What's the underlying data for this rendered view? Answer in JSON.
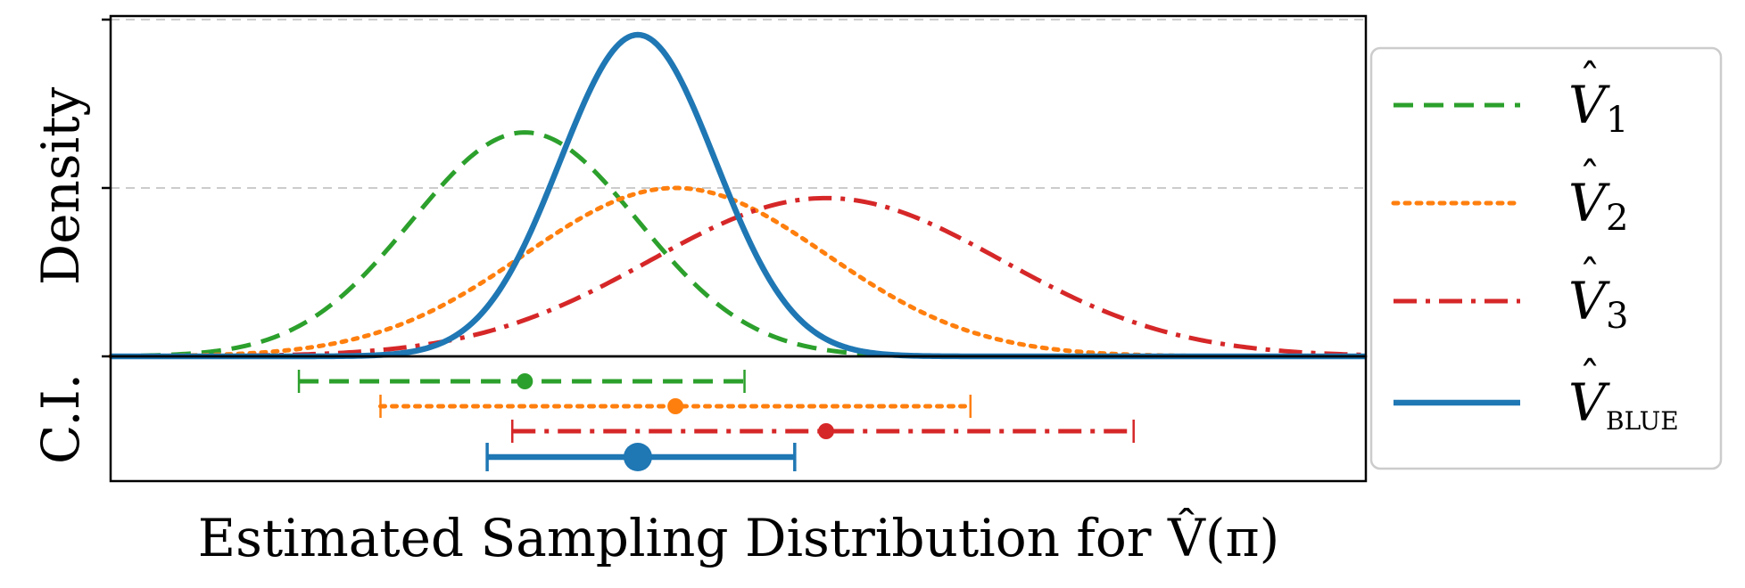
{
  "chart_data": {
    "type": "line",
    "title": "",
    "xlabel": "Estimated Sampling Distribution for V̂(π)",
    "ylabel_density": "Density",
    "ylabel_ci": "C.I.",
    "xlim": [
      0,
      10
    ],
    "ylim": [
      0,
      1.0
    ],
    "grid": "horizontal-dashed",
    "legend_position": "right",
    "series": [
      {
        "name": "V1",
        "label_sub": "1",
        "color": "#2ca02c",
        "style": "dashed",
        "mean": 3.3,
        "sd": 0.9,
        "peak": 0.665,
        "ci": [
          1.5,
          5.05
        ]
      },
      {
        "name": "V2",
        "label_sub": "2",
        "color": "#ff7f0e",
        "style": "dotted",
        "mean": 4.5,
        "sd": 1.2,
        "peak": 0.5,
        "ci": [
          2.15,
          6.85
        ]
      },
      {
        "name": "V3",
        "label_sub": "3",
        "color": "#d62728",
        "style": "dashdot",
        "mean": 5.7,
        "sd": 1.4,
        "peak": 0.47,
        "ci": [
          3.2,
          8.15
        ]
      },
      {
        "name": "VBLUE",
        "label_sub": "BLUE",
        "color": "#1f77b4",
        "style": "solid",
        "mean": 4.2,
        "sd": 0.62,
        "peak": 0.955,
        "ci": [
          3.0,
          5.45
        ]
      }
    ]
  },
  "legend": {
    "v": "V",
    "hat": "ˆ",
    "subs": [
      "1",
      "2",
      "3",
      "BLUE"
    ]
  }
}
